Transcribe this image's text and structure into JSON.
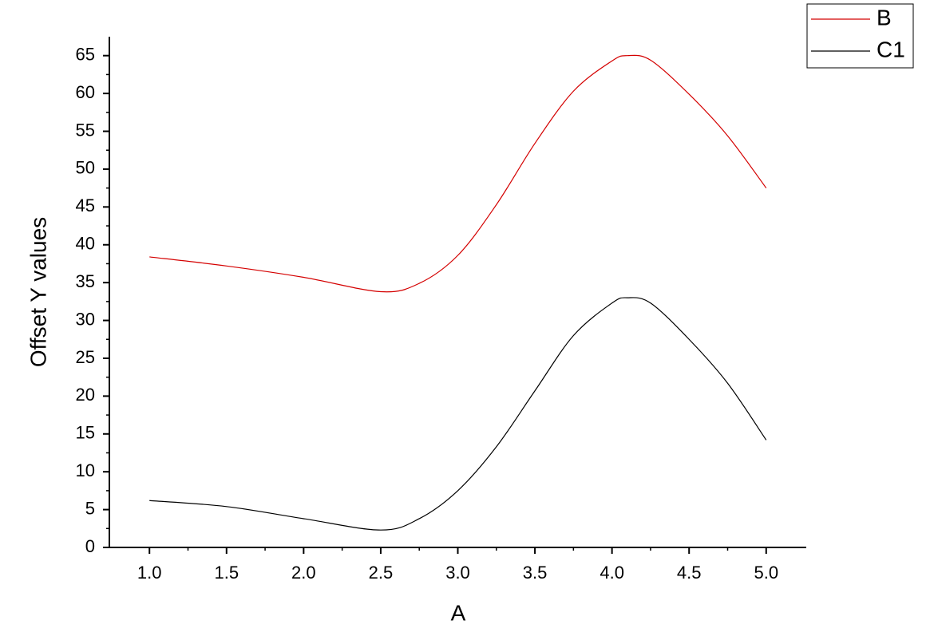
{
  "chart_data": {
    "type": "line",
    "x_label": "A",
    "y_label": "Offset Y values",
    "x": [
      1.0,
      1.5,
      2.0,
      2.5,
      2.75,
      3.0,
      3.25,
      3.5,
      3.75,
      4.0,
      4.1,
      4.25,
      4.5,
      4.75,
      5.0
    ],
    "series": [
      {
        "name": "B",
        "color": "#d40000",
        "values": [
          38.4,
          37.2,
          35.7,
          33.8,
          34.9,
          38.6,
          45.3,
          53.4,
          60.3,
          64.3,
          65.0,
          64.4,
          59.9,
          54.4,
          47.5
        ]
      },
      {
        "name": "C1",
        "color": "#000000",
        "values": [
          6.2,
          5.4,
          3.8,
          2.3,
          3.8,
          7.5,
          13.3,
          20.7,
          28.0,
          32.3,
          33.0,
          32.3,
          27.5,
          21.7,
          14.2
        ]
      }
    ],
    "xlim": [
      0.74,
      5.26
    ],
    "ylim": [
      0,
      67.5
    ],
    "xticks": [
      {
        "value": 1,
        "label": "1.0"
      },
      1.5,
      {
        "value": 2,
        "label": "2.0"
      },
      2.5,
      {
        "value": 3,
        "label": "3.0"
      },
      3.5,
      {
        "value": 4,
        "label": "4.0"
      },
      4.5,
      {
        "value": 5,
        "label": "5.0"
      }
    ],
    "yticks": [
      0,
      5,
      10,
      15,
      20,
      25,
      30,
      35,
      40,
      45,
      50,
      55,
      60,
      65
    ],
    "grid": false,
    "legend": "top-right"
  }
}
